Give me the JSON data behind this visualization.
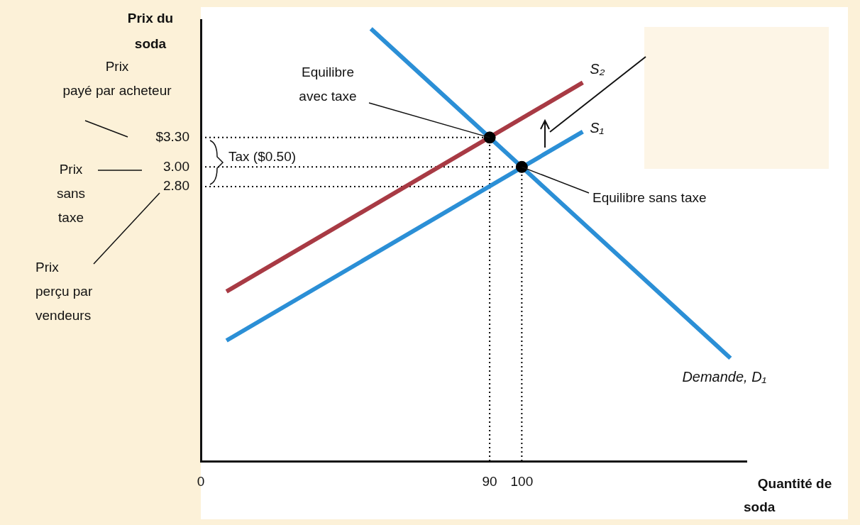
{
  "chart_data": {
    "type": "line",
    "ylabel": "Prix du soda",
    "xlabel": "Quantité de soda",
    "xlim": [
      0,
      170
    ],
    "ylim": [
      0,
      4.5
    ],
    "xticks": [
      0,
      90,
      100
    ],
    "yticks": [
      {
        "value": 2.8,
        "label": "2.80"
      },
      {
        "value": 3.0,
        "label": "3.00"
      },
      {
        "value": 3.3,
        "label": "$3.30"
      }
    ],
    "grid": false,
    "legend": false,
    "marker": "none",
    "line_style": "solid",
    "series": [
      {
        "name": "S₂",
        "color": "#a83a44",
        "x": [
          8,
          119
        ],
        "values": [
          1.73,
          3.86
        ]
      },
      {
        "name": "S₁",
        "color": "#2b8fd6",
        "x": [
          8,
          119
        ],
        "values": [
          1.23,
          3.36
        ]
      },
      {
        "name": "Demande, D₁",
        "color": "#2b8fd6",
        "x": [
          53,
          165
        ],
        "values": [
          4.41,
          1.05
        ]
      },
      {
        "color": "#000000",
        "line_style": "dotted",
        "x": [
          0,
          90
        ],
        "values": [
          3.3,
          3.3
        ]
      },
      {
        "color": "#000000",
        "line_style": "dotted",
        "x": [
          0,
          100
        ],
        "values": [
          3.0,
          3.0
        ]
      },
      {
        "color": "#000000",
        "line_style": "dotted",
        "x": [
          0,
          90
        ],
        "values": [
          2.8,
          2.8
        ]
      },
      {
        "color": "#000000",
        "line_style": "dotted",
        "x": [
          90,
          90
        ],
        "values": [
          0,
          3.3
        ]
      },
      {
        "color": "#000000",
        "line_style": "dotted",
        "x": [
          100,
          100
        ],
        "values": [
          0,
          3.0
        ]
      },
      {
        "type": "scatter",
        "color": "#000000",
        "marker": "circle",
        "x": [
          90,
          100
        ],
        "values": [
          3.3,
          3.0
        ]
      }
    ],
    "annotations": [
      "Prix payé par acheteur",
      "Prix sans taxe",
      "Prix perçu par vendeurs",
      {
        "text": "Equilibre avec taxe",
        "x": 90,
        "y": 3.3
      },
      {
        "text": "Equilibre sans taxe",
        "x": 100,
        "y": 3.0
      },
      "Tax ($0.50)"
    ]
  }
}
